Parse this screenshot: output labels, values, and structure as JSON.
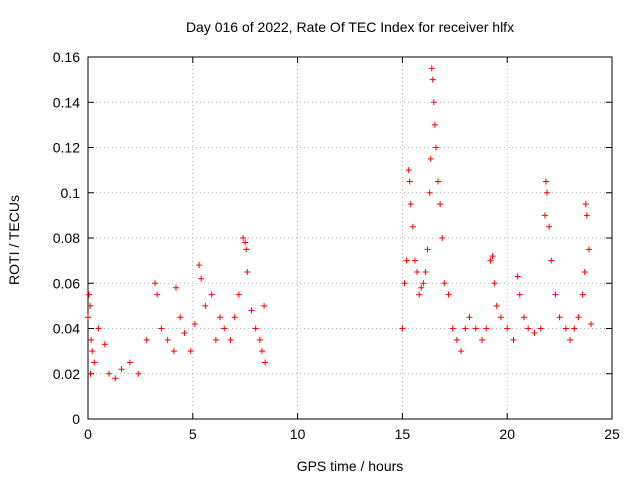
{
  "chart_data": {
    "type": "scatter",
    "title": "Day 016 of 2022, Rate Of TEC Index for receiver hlfx",
    "xlabel": "GPS time / hours",
    "ylabel": "ROTI / TECUs",
    "xlim": [
      0,
      25
    ],
    "ylim": [
      0,
      0.16
    ],
    "xticks": [
      "0",
      "5",
      "10",
      "15",
      "20",
      "25"
    ],
    "yticks": [
      "0",
      "0.02",
      "0.04",
      "0.06",
      "0.08",
      "0.1",
      "0.12",
      "0.14",
      "0.16"
    ],
    "grid": true,
    "marker": "plus",
    "color": "#ff0000",
    "series": [
      {
        "x": [
          0.0,
          0.05,
          0.1,
          0.15,
          0.12,
          0.2,
          0.3,
          0.5,
          0.8,
          1.0,
          1.3,
          1.6,
          2.0,
          2.4,
          2.8,
          3.2,
          3.3,
          3.5,
          3.8,
          4.1,
          4.2,
          4.4,
          4.6,
          4.9,
          5.1,
          5.3,
          5.4,
          5.6,
          5.9,
          6.1,
          6.3,
          6.5,
          6.8,
          7.0,
          7.2,
          7.4,
          7.5,
          7.55,
          7.6,
          7.8,
          8.0,
          8.2,
          8.3,
          8.4,
          8.45,
          15.0,
          15.1,
          15.2,
          15.3,
          15.35,
          15.4,
          15.5,
          15.6,
          15.7,
          15.8,
          15.9,
          16.0,
          16.1,
          16.2,
          16.3,
          16.35,
          16.4,
          16.45,
          16.5,
          16.55,
          16.6,
          16.7,
          16.8,
          16.9,
          17.0,
          17.2,
          17.4,
          17.6,
          17.8,
          18.0,
          18.2,
          18.5,
          18.8,
          19.0,
          19.2,
          19.3,
          19.4,
          19.5,
          19.7,
          20.0,
          20.3,
          20.5,
          20.6,
          20.8,
          21.0,
          21.3,
          21.6,
          21.8,
          21.85,
          21.9,
          22.0,
          22.1,
          22.3,
          22.5,
          22.8,
          23.0,
          23.2,
          23.4,
          23.6,
          23.7,
          23.75,
          23.8,
          23.9,
          24.0
        ],
        "y": [
          0.045,
          0.055,
          0.05,
          0.035,
          0.02,
          0.03,
          0.025,
          0.04,
          0.033,
          0.02,
          0.018,
          0.022,
          0.025,
          0.02,
          0.035,
          0.06,
          0.055,
          0.04,
          0.035,
          0.03,
          0.058,
          0.045,
          0.038,
          0.03,
          0.042,
          0.068,
          0.062,
          0.05,
          0.055,
          0.035,
          0.045,
          0.04,
          0.035,
          0.045,
          0.055,
          0.08,
          0.078,
          0.075,
          0.065,
          0.048,
          0.04,
          0.035,
          0.03,
          0.05,
          0.025,
          0.04,
          0.06,
          0.07,
          0.11,
          0.105,
          0.095,
          0.085,
          0.07,
          0.065,
          0.055,
          0.058,
          0.06,
          0.065,
          0.075,
          0.1,
          0.115,
          0.155,
          0.15,
          0.14,
          0.13,
          0.12,
          0.105,
          0.095,
          0.08,
          0.06,
          0.055,
          0.04,
          0.035,
          0.03,
          0.04,
          0.045,
          0.04,
          0.035,
          0.04,
          0.07,
          0.072,
          0.06,
          0.05,
          0.045,
          0.04,
          0.035,
          0.063,
          0.055,
          0.045,
          0.04,
          0.038,
          0.04,
          0.09,
          0.105,
          0.1,
          0.085,
          0.07,
          0.055,
          0.045,
          0.04,
          0.035,
          0.04,
          0.045,
          0.055,
          0.065,
          0.095,
          0.09,
          0.075,
          0.042
        ]
      }
    ]
  }
}
